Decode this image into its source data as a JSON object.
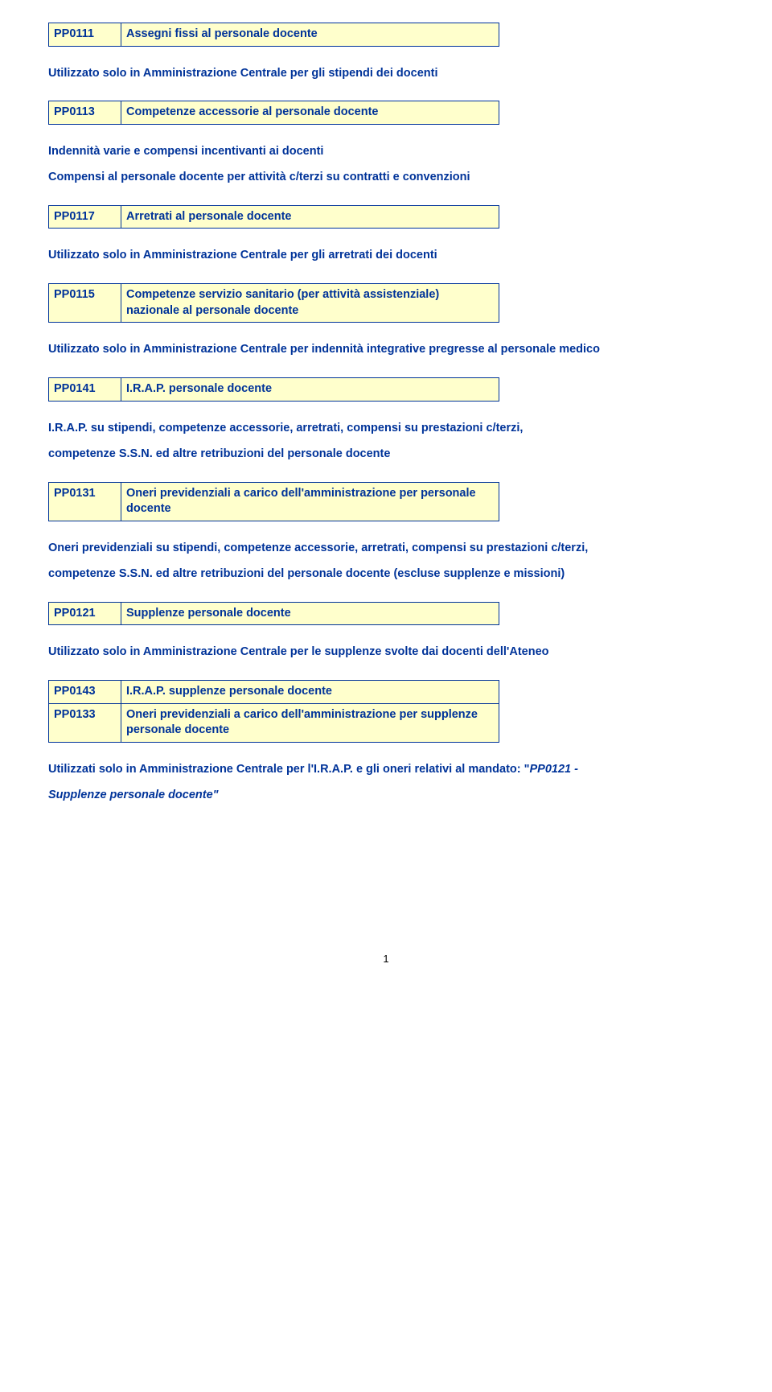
{
  "rows": {
    "r1": {
      "code": "PP0111",
      "desc": "Assegni fissi al personale docente"
    },
    "r2": {
      "code": "PP0113",
      "desc": "Competenze accessorie al personale docente"
    },
    "r3": {
      "code": "PP0117",
      "desc": "Arretrati al personale docente"
    },
    "r4": {
      "code": "PP0115",
      "desc": "Competenze servizio sanitario (per attività assistenziale) nazionale al personale docente"
    },
    "r5": {
      "code": "PP0141",
      "desc": "I.R.A.P. personale docente"
    },
    "r6": {
      "code": "PP0131",
      "desc": "Oneri previdenziali a carico dell'amministrazione per personale docente"
    },
    "r7": {
      "code": "PP0121",
      "desc": "Supplenze personale docente"
    },
    "r8a": {
      "code": "PP0143",
      "desc": "I.R.A.P. supplenze personale docente"
    },
    "r8b": {
      "code": "PP0133",
      "desc": "Oneri previdenziali a carico dell'amministrazione per supplenze personale docente"
    }
  },
  "paras": {
    "p1": "Utilizzato solo in Amministrazione Centrale per gli stipendi dei docenti",
    "p2a": "Indennità varie e compensi incentivanti ai docenti",
    "p2b": "Compensi al personale docente per attività c/terzi su contratti e convenzioni",
    "p3": "Utilizzato solo in Amministrazione Centrale per gli arretrati dei docenti",
    "p4": "Utilizzato solo in Amministrazione Centrale per indennità integrative pregresse al personale medico",
    "p5a": "I.R.A.P. su stipendi, competenze accessorie, arretrati, compensi su prestazioni c/terzi,",
    "p5b": "competenze S.S.N. ed altre retribuzioni del personale docente",
    "p6a": "Oneri previdenziali su stipendi, competenze accessorie, arretrati, compensi su prestazioni c/terzi,",
    "p6b": "competenze S.S.N. ed altre retribuzioni del personale docente (escluse supplenze e missioni)",
    "p7": "Utilizzato solo in Amministrazione Centrale per le supplenze svolte dai docenti dell'Ateneo",
    "p8a": "Utilizzati solo in Amministrazione Centrale per l'I.R.A.P. e gli oneri relativi al mandato: \"",
    "p8b": "PP0121 -",
    "p8c": "Supplenze personale docente\""
  },
  "page_number": "1",
  "colors": {
    "text": "#003399",
    "cell_bg": "#ffffcc",
    "border": "#003399",
    "page_bg": "#ffffff"
  }
}
